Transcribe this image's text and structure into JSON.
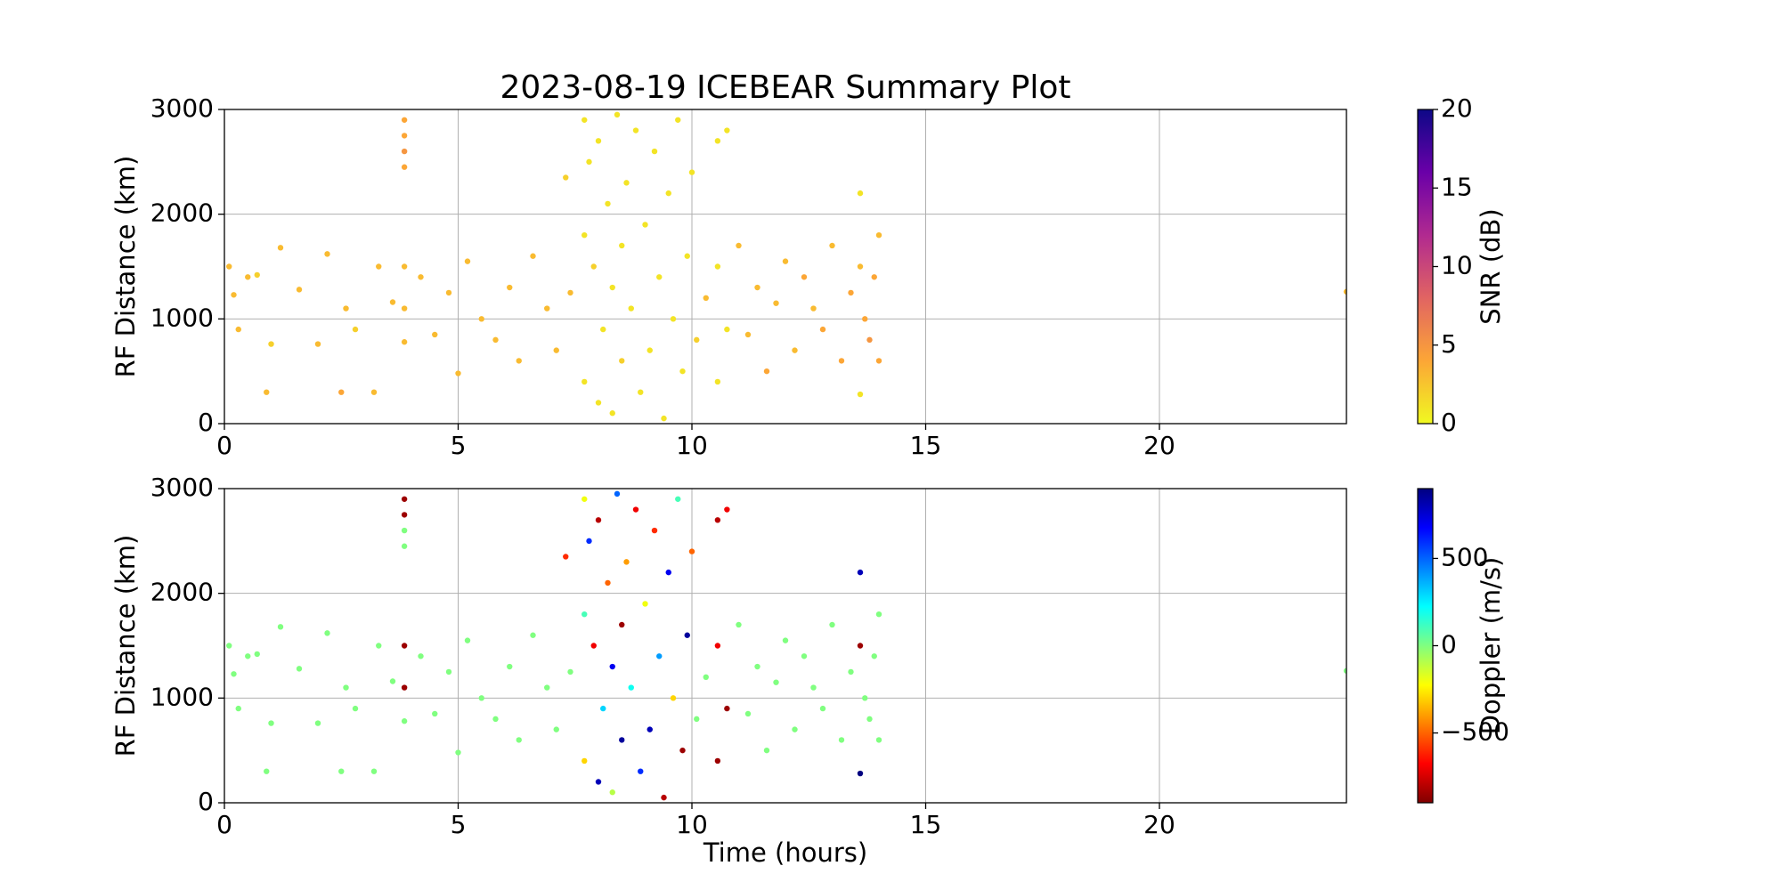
{
  "chart_data": [
    {
      "type": "scatter",
      "title": "2023-08-19 ICEBEAR Summary Plot",
      "ylabel": "RF Distance (km)",
      "xlim": [
        0,
        24
      ],
      "xticks": [
        0,
        5,
        10,
        15,
        20
      ],
      "ylim": [
        0,
        3000
      ],
      "yticks": [
        0,
        1000,
        2000,
        3000
      ],
      "grid": true,
      "colorbar_label": "SNR (dB)",
      "clim": [
        0,
        20
      ],
      "cticks": [
        0,
        5,
        10,
        15,
        20
      ],
      "colormap": [
        "#f0f921",
        "#fca636",
        "#e16462",
        "#b12a90",
        "#6a00a8",
        "#0d0887"
      ],
      "x": [
        0.1,
        0.2,
        0.3,
        0.5,
        0.7,
        0.9,
        1.0,
        1.2,
        1.6,
        2.0,
        2.2,
        2.5,
        2.6,
        2.8,
        3.2,
        3.3,
        3.6,
        3.85,
        3.85,
        3.85,
        3.85,
        3.85,
        3.85,
        3.85,
        4.2,
        4.5,
        4.8,
        5.0,
        5.2,
        5.5,
        5.8,
        6.1,
        6.3,
        6.6,
        6.9,
        7.1,
        7.3,
        7.4,
        7.7,
        7.7,
        7.7,
        7.8,
        7.9,
        8.0,
        8.0,
        8.1,
        8.2,
        8.3,
        8.3,
        8.4,
        8.5,
        8.5,
        8.6,
        8.7,
        8.8,
        8.9,
        9.0,
        9.1,
        9.2,
        9.3,
        9.4,
        9.5,
        9.6,
        9.7,
        9.8,
        9.9,
        10.0,
        10.1,
        10.3,
        10.55,
        10.55,
        10.55,
        10.75,
        10.75,
        11.0,
        11.2,
        11.4,
        11.6,
        11.8,
        12.0,
        12.2,
        12.4,
        12.6,
        12.8,
        13.0,
        13.2,
        13.4,
        13.6,
        13.6,
        13.6,
        13.7,
        13.8,
        13.9,
        14.0,
        14.0,
        24.0
      ],
      "values": [
        1500,
        1230,
        900,
        1400,
        1420,
        300,
        760,
        1680,
        1280,
        760,
        1620,
        300,
        1100,
        900,
        300,
        1500,
        1160,
        2900,
        2750,
        2600,
        2450,
        1500,
        1100,
        780,
        1400,
        850,
        1250,
        480,
        1550,
        1000,
        800,
        1300,
        600,
        1600,
        1100,
        700,
        2350,
        1250,
        2900,
        1800,
        400,
        2500,
        1500,
        200,
        2700,
        900,
        2100,
        1300,
        100,
        2950,
        1700,
        600,
        2300,
        1100,
        2800,
        300,
        1900,
        700,
        2600,
        1400,
        50,
        2200,
        1000,
        2900,
        500,
        1600,
        2400,
        800,
        1200,
        2700,
        1500,
        400,
        2800,
        900,
        1700,
        850,
        1300,
        500,
        1150,
        1550,
        700,
        1400,
        1100,
        900,
        1700,
        600,
        1250,
        2200,
        1500,
        280,
        1000,
        800,
        1400,
        1800,
        600,
        1260
      ],
      "color_values": [
        3,
        3,
        3,
        3,
        2,
        3,
        2,
        3,
        3,
        3,
        3,
        4,
        3,
        2,
        3,
        3,
        3,
        4,
        4,
        5,
        4,
        3,
        3,
        3,
        3,
        3,
        3,
        3,
        3,
        3,
        3,
        3,
        3,
        3,
        3,
        3,
        2,
        3,
        1,
        1,
        1,
        1,
        2,
        1,
        1,
        1,
        1,
        1,
        1,
        1,
        1,
        2,
        1,
        1,
        1,
        1,
        1,
        1,
        1,
        1,
        1,
        1,
        1,
        1,
        1,
        1,
        1,
        2,
        3,
        1,
        1,
        1,
        1,
        1,
        3,
        3,
        3,
        4,
        3,
        3,
        3,
        4,
        3,
        4,
        3,
        4,
        4,
        1,
        3,
        1,
        4,
        5,
        4,
        3,
        4,
        3
      ]
    },
    {
      "type": "scatter",
      "xlabel": "Time (hours)",
      "ylabel": "RF Distance (km)",
      "xlim": [
        0,
        24
      ],
      "xticks": [
        0,
        5,
        10,
        15,
        20
      ],
      "ylim": [
        0,
        3000
      ],
      "yticks": [
        0,
        1000,
        2000,
        3000
      ],
      "grid": true,
      "colorbar_label": "Doppler (m/s)",
      "clim": [
        -900,
        900
      ],
      "cticks": [
        {
          "value": -500,
          "label": "−500"
        },
        0,
        500
      ],
      "colormap": [
        "#800000",
        "#ff0000",
        "#ff8000",
        "#ffff00",
        "#80ff80",
        "#00ffff",
        "#0080ff",
        "#0000ff",
        "#000080"
      ],
      "x": [
        0.1,
        0.2,
        0.3,
        0.5,
        0.7,
        0.9,
        1.0,
        1.2,
        1.6,
        2.0,
        2.2,
        2.5,
        2.6,
        2.8,
        3.2,
        3.3,
        3.6,
        3.85,
        3.85,
        3.85,
        3.85,
        3.85,
        3.85,
        3.85,
        4.2,
        4.5,
        4.8,
        5.0,
        5.2,
        5.5,
        5.8,
        6.1,
        6.3,
        6.6,
        6.9,
        7.1,
        7.3,
        7.4,
        7.7,
        7.7,
        7.7,
        7.8,
        7.9,
        8.0,
        8.0,
        8.1,
        8.2,
        8.3,
        8.3,
        8.4,
        8.5,
        8.5,
        8.6,
        8.7,
        8.8,
        8.9,
        9.0,
        9.1,
        9.2,
        9.3,
        9.4,
        9.5,
        9.6,
        9.7,
        9.8,
        9.9,
        10.0,
        10.1,
        10.3,
        10.55,
        10.55,
        10.55,
        10.75,
        10.75,
        11.0,
        11.2,
        11.4,
        11.6,
        11.8,
        12.0,
        12.2,
        12.4,
        12.6,
        12.8,
        13.0,
        13.2,
        13.4,
        13.6,
        13.6,
        13.6,
        13.7,
        13.8,
        13.9,
        14.0,
        14.0,
        24.0
      ],
      "values": [
        1500,
        1230,
        900,
        1400,
        1420,
        300,
        760,
        1680,
        1280,
        760,
        1620,
        300,
        1100,
        900,
        300,
        1500,
        1160,
        2900,
        2750,
        2600,
        2450,
        1500,
        1100,
        780,
        1400,
        850,
        1250,
        480,
        1550,
        1000,
        800,
        1300,
        600,
        1600,
        1100,
        700,
        2350,
        1250,
        2900,
        1800,
        400,
        2500,
        1500,
        200,
        2700,
        900,
        2100,
        1300,
        100,
        2950,
        1700,
        600,
        2300,
        1100,
        2800,
        300,
        1900,
        700,
        2600,
        1400,
        50,
        2200,
        1000,
        2900,
        500,
        1600,
        2400,
        800,
        1200,
        2700,
        1500,
        400,
        2800,
        900,
        1700,
        850,
        1300,
        500,
        1150,
        1550,
        700,
        1400,
        1100,
        900,
        1700,
        600,
        1250,
        2200,
        1500,
        280,
        1000,
        800,
        1400,
        1800,
        600,
        1260
      ],
      "color_values": [
        0,
        0,
        0,
        0,
        0,
        0,
        0,
        0,
        0,
        0,
        0,
        0,
        0,
        0,
        0,
        0,
        0,
        -850,
        -850,
        0,
        0,
        -850,
        -850,
        0,
        0,
        0,
        0,
        0,
        0,
        0,
        0,
        0,
        0,
        0,
        0,
        0,
        -600,
        0,
        -200,
        100,
        -300,
        600,
        -700,
        800,
        -800,
        300,
        -500,
        700,
        -100,
        500,
        -850,
        850,
        -400,
        200,
        -700,
        600,
        -200,
        800,
        -600,
        400,
        -800,
        700,
        -300,
        100,
        -850,
        850,
        -500,
        0,
        0,
        -800,
        -700,
        -850,
        -700,
        -850,
        0,
        0,
        0,
        0,
        0,
        0,
        0,
        0,
        0,
        0,
        0,
        0,
        0,
        800,
        -850,
        900,
        0,
        0,
        0,
        0,
        0,
        0
      ]
    }
  ]
}
